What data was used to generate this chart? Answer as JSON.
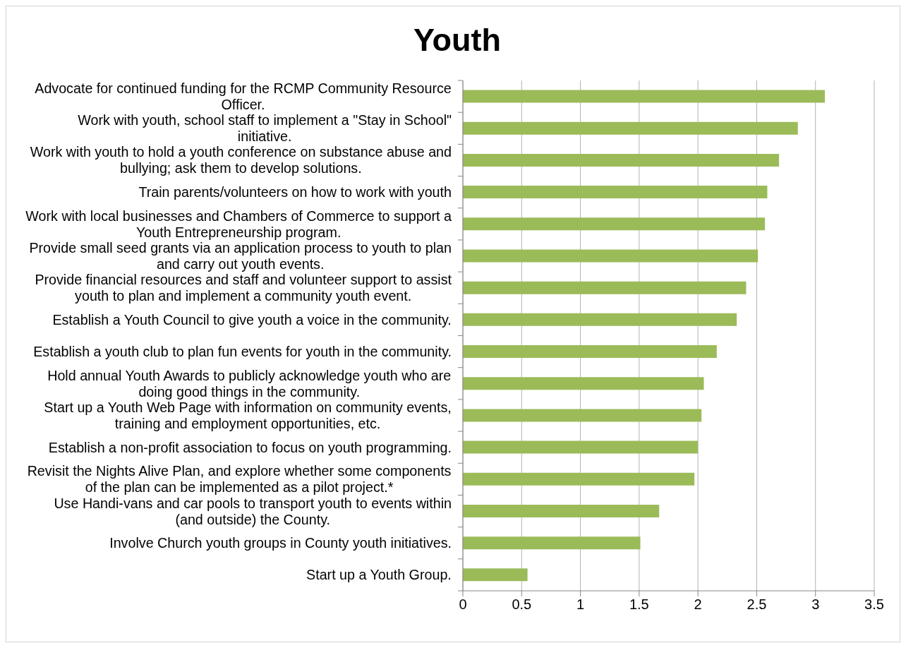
{
  "chart_data": {
    "type": "bar",
    "title": "Youth",
    "orientation": "horizontal",
    "categories": [
      "Advocate for continued funding for the RCMP Community Resource Officer.",
      "Work with youth, school staff to implement a \"Stay in School\" initiative.",
      "Work with youth to hold a youth conference on substance abuse and bullying; ask them to develop solutions.",
      "Train parents/volunteers on how to work with youth",
      "Work with local businesses and Chambers of Commerce to support a Youth Entrepreneurship program.",
      "Provide small seed grants via an application process to youth to plan and carry out youth events.",
      "Provide financial resources and staff and volunteer support to assist youth to plan and implement a community youth event.",
      "Establish a Youth Council to give youth a voice in the community.",
      "Establish a youth club to plan fun events for youth in the community.",
      "Hold annual Youth Awards to publicly acknowledge youth who are doing good things in the community.",
      "Start up a Youth Web Page with information on community events, training and employment opportunities, etc.",
      "Establish a non-profit association to focus on youth programming.",
      "Revisit the Nights Alive Plan, and explore whether some components of the plan can be implemented as a pilot project.*",
      "Use Handi-vans and car pools to transport youth to events within (and outside) the County.",
      "Involve Church youth groups in County youth initiatives.",
      "Start up a Youth Group."
    ],
    "values": [
      3.08,
      2.85,
      2.69,
      2.59,
      2.57,
      2.51,
      2.41,
      2.33,
      2.16,
      2.05,
      2.03,
      2.0,
      1.97,
      1.67,
      1.51,
      0.55
    ],
    "color": "#9bbb59",
    "xlim": [
      0,
      3.5
    ],
    "xticks": [
      0,
      0.5,
      1,
      1.5,
      2,
      2.5,
      3,
      3.5
    ],
    "grid": "x"
  }
}
